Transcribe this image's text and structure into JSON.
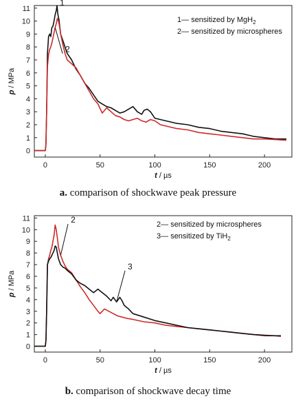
{
  "chart_data": [
    {
      "type": "line",
      "caption_letter": "a.",
      "caption_text": "comparison of shockwave peak pressure",
      "xlabel_var": "t",
      "xlabel_unit": " / µs",
      "ylabel_var": "p",
      "ylabel_unit": " / MPa",
      "xlim": [
        -10,
        225
      ],
      "ylim": [
        -0.5,
        11.2
      ],
      "xticks": [
        0,
        50,
        100,
        150,
        200
      ],
      "yticks": [
        0,
        1,
        2,
        3,
        4,
        5,
        6,
        7,
        8,
        9,
        10,
        11
      ],
      "legend": [
        {
          "num": "1",
          "text": "sensitized by MgH",
          "sub": "2"
        },
        {
          "num": "2",
          "text": "sensitized by microspheres",
          "sub": ""
        }
      ],
      "series": [
        {
          "id": "1",
          "color": "#111111",
          "x": [
            -10,
            0,
            0.6,
            1.2,
            2,
            3,
            4,
            5,
            6,
            7,
            8,
            9,
            10,
            10.7,
            11.5,
            12.5,
            14,
            16,
            18,
            20,
            24,
            28,
            32,
            36,
            40,
            44,
            48,
            52,
            56,
            60,
            64,
            68,
            72,
            76,
            80,
            84,
            88,
            90,
            93,
            96,
            100,
            105,
            110,
            120,
            130,
            140,
            150,
            160,
            170,
            180,
            190,
            200,
            210,
            220
          ],
          "y": [
            0,
            0,
            0.5,
            3,
            7.5,
            8.8,
            9,
            8.8,
            9.5,
            9.6,
            10,
            10.5,
            10.8,
            11.2,
            10.5,
            10.1,
            9,
            8.5,
            8,
            7.5,
            7,
            6.3,
            5.8,
            5.2,
            4.8,
            4.3,
            3.8,
            3.6,
            3.4,
            3.3,
            3.1,
            2.9,
            3.0,
            3.2,
            3.4,
            3.0,
            2.8,
            3.1,
            3.2,
            3.0,
            2.5,
            2.4,
            2.3,
            2.1,
            2.0,
            1.8,
            1.7,
            1.5,
            1.4,
            1.3,
            1.1,
            1.0,
            0.9,
            0.9
          ]
        },
        {
          "id": "2",
          "color": "#cc2a2a",
          "x": [
            -10,
            0,
            0.6,
            1.2,
            2,
            3,
            4,
            5,
            6,
            7,
            8,
            9,
            10,
            11,
            12,
            13,
            14,
            16,
            18,
            20,
            24,
            28,
            32,
            36,
            40,
            44,
            48,
            52,
            56,
            60,
            64,
            68,
            72,
            76,
            80,
            84,
            88,
            92,
            96,
            100,
            105,
            110,
            120,
            130,
            140,
            150,
            160,
            170,
            180,
            190,
            200,
            210,
            220
          ],
          "y": [
            0,
            0,
            0.5,
            3,
            6.5,
            7.4,
            7.8,
            8,
            8.3,
            8.7,
            9.1,
            9.5,
            9.8,
            10.2,
            10.0,
            9.6,
            9.0,
            8.2,
            7.5,
            7.0,
            6.7,
            6.4,
            5.8,
            5.2,
            4.6,
            4.0,
            3.6,
            2.9,
            3.3,
            3.0,
            2.7,
            2.6,
            2.4,
            2.3,
            2.4,
            2.5,
            2.3,
            2.2,
            2.4,
            2.3,
            2.0,
            1.9,
            1.7,
            1.6,
            1.4,
            1.3,
            1.2,
            1.1,
            1.0,
            0.9,
            0.9,
            0.85,
            0.8
          ]
        }
      ],
      "curve_labels": [
        {
          "text": "1",
          "x": 12,
          "y": 11.2
        },
        {
          "text": "2",
          "x": 17,
          "y": 7.6
        }
      ]
    },
    {
      "type": "line",
      "caption_letter": "b.",
      "caption_text": "comparison of shockwave decay time",
      "xlabel_var": "t",
      "xlabel_unit": " / µs",
      "ylabel_var": "p",
      "ylabel_unit": " / MPa",
      "xlim": [
        -10,
        225
      ],
      "ylim": [
        -0.5,
        11.2
      ],
      "xticks": [
        0,
        50,
        100,
        150,
        200
      ],
      "yticks": [
        0,
        1,
        2,
        3,
        4,
        5,
        6,
        7,
        8,
        9,
        10,
        11
      ],
      "legend": [
        {
          "num": "2",
          "text": "sensitized by microspheres",
          "sub": ""
        },
        {
          "num": "3",
          "text": "sensitized by TiH",
          "sub": "2"
        }
      ],
      "series": [
        {
          "id": "2",
          "color": "#cc2a2a",
          "x": [
            -10,
            0,
            0.6,
            1.2,
            2,
            3,
            4,
            5,
            6,
            7,
            8,
            9,
            10,
            11,
            12,
            14,
            16,
            18,
            20,
            24,
            28,
            32,
            36,
            40,
            44,
            48,
            50,
            54,
            58,
            62,
            66,
            70,
            74,
            80,
            90,
            100,
            110,
            120,
            130,
            140,
            150,
            160,
            170,
            180,
            190,
            200,
            210,
            215
          ],
          "y": [
            0,
            0,
            0.5,
            3,
            7,
            7.5,
            7.8,
            8.2,
            8.5,
            9,
            9.5,
            10.4,
            10.0,
            9.3,
            8.5,
            7.8,
            7.3,
            6.9,
            6.6,
            6.3,
            5.7,
            5.1,
            4.6,
            4.0,
            3.5,
            3.0,
            2.8,
            3.2,
            3.0,
            2.8,
            2.6,
            2.5,
            2.4,
            2.3,
            2.1,
            2.0,
            1.8,
            1.7,
            1.6,
            1.5,
            1.4,
            1.3,
            1.2,
            1.1,
            1.0,
            0.9,
            0.9,
            0.85
          ]
        },
        {
          "id": "3",
          "color": "#111111",
          "x": [
            -10,
            0,
            0.6,
            1.2,
            2,
            3,
            4,
            5,
            6,
            7,
            8,
            9,
            10,
            11,
            12,
            14,
            16,
            18,
            20,
            24,
            28,
            32,
            36,
            40,
            44,
            48,
            52,
            56,
            60,
            62,
            65,
            68,
            70,
            72,
            76,
            80,
            90,
            100,
            110,
            120,
            130,
            140,
            150,
            160,
            170,
            180,
            190,
            200,
            210,
            215
          ],
          "y": [
            0,
            0,
            0.5,
            3,
            7,
            7.3,
            7.5,
            7.6,
            7.8,
            8.0,
            8.2,
            8.6,
            8.5,
            8.0,
            7.5,
            7.0,
            6.8,
            6.7,
            6.5,
            6.2,
            5.7,
            5.4,
            5.2,
            4.9,
            4.6,
            4.9,
            4.6,
            4.3,
            3.9,
            4.2,
            3.8,
            4.2,
            3.9,
            3.5,
            3.2,
            2.8,
            2.5,
            2.2,
            2.0,
            1.8,
            1.6,
            1.5,
            1.4,
            1.3,
            1.2,
            1.1,
            1.0,
            0.95,
            0.9,
            0.9
          ]
        }
      ],
      "curve_labels": [
        {
          "text": "2",
          "x": 22,
          "y": 10.6
        },
        {
          "text": "3",
          "x": 74,
          "y": 6.6
        }
      ]
    }
  ]
}
